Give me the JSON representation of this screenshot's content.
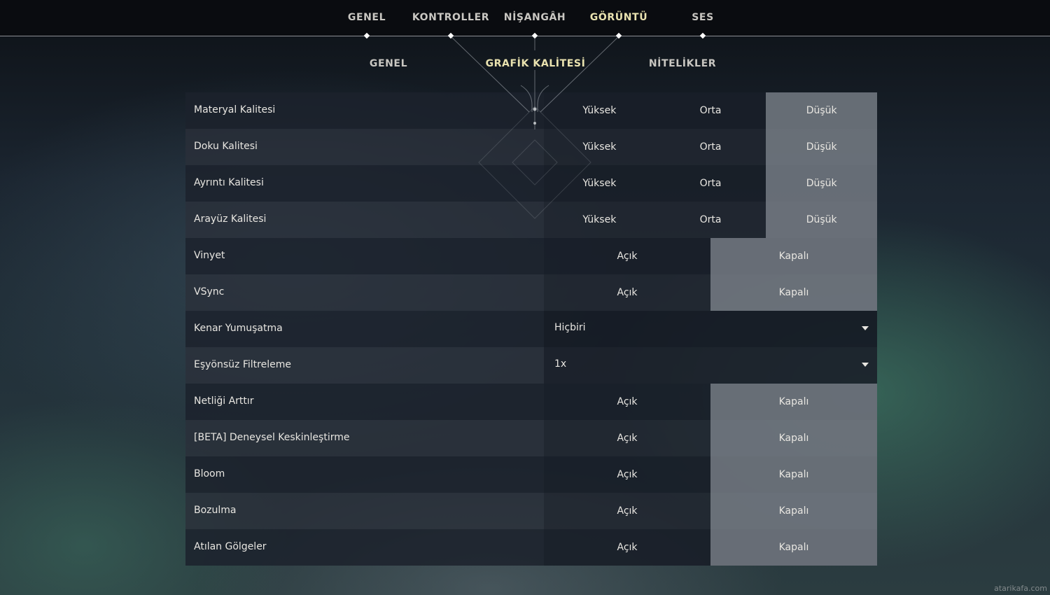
{
  "top_nav": {
    "tabs": [
      {
        "label": "GENEL",
        "active": false
      },
      {
        "label": "KONTROLLER",
        "active": false
      },
      {
        "label": "NİŞANGÂH",
        "active": false
      },
      {
        "label": "GÖRÜNTÜ",
        "active": true
      },
      {
        "label": "SES",
        "active": false
      }
    ]
  },
  "sub_nav": {
    "tabs": [
      {
        "label": "GENEL",
        "active": false
      },
      {
        "label": "GRAFİK KALİTESİ",
        "active": true
      },
      {
        "label": "NİTELİKLER",
        "active": false
      }
    ]
  },
  "settings": {
    "rows": [
      {
        "label": "Materyal Kalitesi",
        "options": [
          "Yüksek",
          "Orta",
          "Düşük"
        ],
        "selected": "Düşük"
      },
      {
        "label": "Doku Kalitesi",
        "options": [
          "Yüksek",
          "Orta",
          "Düşük"
        ],
        "selected": "Düşük"
      },
      {
        "label": "Ayrıntı Kalitesi",
        "options": [
          "Yüksek",
          "Orta",
          "Düşük"
        ],
        "selected": "Düşük"
      },
      {
        "label": "Arayüz Kalitesi",
        "options": [
          "Yüksek",
          "Orta",
          "Düşük"
        ],
        "selected": "Düşük"
      },
      {
        "label": "Vinyet",
        "options": [
          "Açık",
          "Kapalı"
        ],
        "selected": "Kapalı"
      },
      {
        "label": "VSync",
        "options": [
          "Açık",
          "Kapalı"
        ],
        "selected": "Kapalı"
      },
      {
        "label": "Kenar Yumuşatma",
        "dropdown": "Hiçbiri"
      },
      {
        "label": "Eşyönsüz Filtreleme",
        "dropdown": "1x"
      },
      {
        "label": "Netliği Arttır",
        "options": [
          "Açık",
          "Kapalı"
        ],
        "selected": "Kapalı"
      },
      {
        "label": "[BETA] Deneysel Keskinleştirme",
        "options": [
          "Açık",
          "Kapalı"
        ],
        "selected": "Kapalı"
      },
      {
        "label": "Bloom",
        "options": [
          "Açık",
          "Kapalı"
        ],
        "selected": "Kapalı"
      },
      {
        "label": "Bozulma",
        "options": [
          "Açık",
          "Kapalı"
        ],
        "selected": "Kapalı"
      },
      {
        "label": "Atılan Gölgeler",
        "options": [
          "Açık",
          "Kapalı"
        ],
        "selected": "Kapalı"
      }
    ]
  },
  "watermark": "atarikafa.com",
  "colors": {
    "active_tab": "#eae3b0",
    "selected_option": "#7a7f86"
  }
}
